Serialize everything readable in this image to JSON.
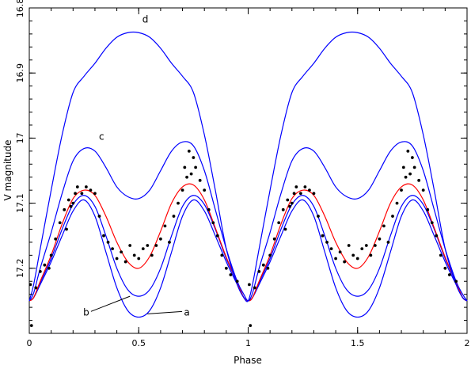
{
  "chart_data": {
    "type": "line",
    "xlabel": "Phase",
    "ylabel": "V magnitude",
    "xlim": [
      0,
      2
    ],
    "ylim": [
      17.3,
      16.8
    ],
    "y_inverted": true,
    "grid": false,
    "x_ticks": [
      0,
      0.5,
      1,
      1.5,
      2
    ],
    "x_tick_labels": [
      "0",
      "0.5",
      "1",
      "1.5",
      "2"
    ],
    "y_ticks": [
      16.8,
      16.9,
      17,
      17.1,
      17.2
    ],
    "y_tick_labels": [
      "16.8",
      "16.9",
      "17",
      "17.1",
      "17.2"
    ],
    "colors": {
      "model": "#0000ff",
      "fit": "#ff0000",
      "points": "#000000",
      "axis": "#000000"
    },
    "series": [
      {
        "label": "a",
        "color": "#0000ff",
        "x": [
          0.0,
          0.02,
          0.05,
          0.1,
          0.15,
          0.2,
          0.25,
          0.3,
          0.35,
          0.4,
          0.45,
          0.5,
          0.55,
          0.6,
          0.65,
          0.7,
          0.75,
          0.8,
          0.85,
          0.9,
          0.95,
          0.98,
          1.0
        ],
        "y": [
          17.25,
          17.245,
          17.225,
          17.19,
          17.15,
          17.112,
          17.095,
          17.12,
          17.175,
          17.23,
          17.265,
          17.275,
          17.265,
          17.23,
          17.175,
          17.12,
          17.095,
          17.112,
          17.15,
          17.19,
          17.225,
          17.245,
          17.25
        ]
      },
      {
        "label": "b",
        "color": "#0000ff",
        "x": [
          0.0,
          0.02,
          0.05,
          0.1,
          0.15,
          0.2,
          0.25,
          0.3,
          0.35,
          0.4,
          0.45,
          0.5,
          0.55,
          0.6,
          0.65,
          0.7,
          0.75,
          0.8,
          0.85,
          0.9,
          0.95,
          0.98,
          1.0
        ],
        "y": [
          17.25,
          17.245,
          17.222,
          17.185,
          17.14,
          17.102,
          17.088,
          17.105,
          17.15,
          17.2,
          17.233,
          17.243,
          17.233,
          17.2,
          17.15,
          17.105,
          17.088,
          17.102,
          17.14,
          17.185,
          17.222,
          17.245,
          17.25
        ]
      },
      {
        "label": "",
        "color": "#ff0000",
        "x": [
          0.0,
          0.02,
          0.05,
          0.1,
          0.15,
          0.2,
          0.25,
          0.3,
          0.35,
          0.4,
          0.45,
          0.5,
          0.55,
          0.6,
          0.65,
          0.7,
          0.75,
          0.8,
          0.85,
          0.9,
          0.95,
          0.98,
          1.0
        ],
        "y": [
          17.25,
          17.245,
          17.22,
          17.18,
          17.132,
          17.093,
          17.08,
          17.088,
          17.12,
          17.16,
          17.19,
          17.2,
          17.182,
          17.143,
          17.1,
          17.075,
          17.072,
          17.095,
          17.138,
          17.183,
          17.222,
          17.245,
          17.25
        ]
      },
      {
        "label": "c",
        "color": "#0000ff",
        "x": [
          0.0,
          0.02,
          0.05,
          0.1,
          0.15,
          0.2,
          0.25,
          0.3,
          0.35,
          0.4,
          0.45,
          0.5,
          0.55,
          0.6,
          0.65,
          0.7,
          0.75,
          0.8,
          0.85,
          0.9,
          0.95,
          0.98,
          1.0
        ],
        "y": [
          17.25,
          17.238,
          17.2,
          17.145,
          17.085,
          17.035,
          17.016,
          17.02,
          17.045,
          17.075,
          17.09,
          17.093,
          17.08,
          17.05,
          17.02,
          17.006,
          17.012,
          17.05,
          17.11,
          17.17,
          17.22,
          17.24,
          17.25
        ]
      },
      {
        "label": "d",
        "color": "#0000ff",
        "x": [
          0.0,
          0.02,
          0.05,
          0.1,
          0.15,
          0.2,
          0.25,
          0.3,
          0.35,
          0.4,
          0.45,
          0.5,
          0.55,
          0.6,
          0.65,
          0.7,
          0.75,
          0.8,
          0.85,
          0.9,
          0.95,
          0.98,
          1.0
        ],
        "y": [
          17.25,
          17.225,
          17.17,
          17.08,
          16.995,
          16.93,
          16.905,
          16.885,
          16.862,
          16.845,
          16.838,
          16.838,
          16.845,
          16.862,
          16.885,
          16.905,
          16.93,
          16.995,
          17.08,
          17.17,
          17.225,
          17.245,
          17.25
        ]
      }
    ],
    "period_repeat": 1,
    "points": {
      "x": [
        0.005,
        0.01,
        0.03,
        0.05,
        0.07,
        0.09,
        0.1,
        0.12,
        0.14,
        0.16,
        0.17,
        0.18,
        0.19,
        0.2,
        0.21,
        0.22,
        0.24,
        0.26,
        0.28,
        0.3,
        0.32,
        0.34,
        0.36,
        0.38,
        0.4,
        0.42,
        0.44,
        0.46,
        0.48,
        0.5,
        0.52,
        0.54,
        0.56,
        0.58,
        0.6,
        0.62,
        0.64,
        0.66,
        0.68,
        0.7,
        0.71,
        0.72,
        0.73,
        0.74,
        0.75,
        0.76,
        0.78,
        0.8,
        0.82,
        0.84,
        0.86,
        0.88,
        0.9,
        0.92,
        0.95
      ],
      "y": [
        17.225,
        17.288,
        17.23,
        17.205,
        17.195,
        17.2,
        17.18,
        17.155,
        17.13,
        17.11,
        17.14,
        17.095,
        17.105,
        17.1,
        17.085,
        17.075,
        17.085,
        17.075,
        17.08,
        17.085,
        17.12,
        17.15,
        17.16,
        17.17,
        17.185,
        17.175,
        17.19,
        17.165,
        17.18,
        17.185,
        17.17,
        17.165,
        17.18,
        17.165,
        17.155,
        17.135,
        17.16,
        17.12,
        17.1,
        17.08,
        17.045,
        17.06,
        17.02,
        17.055,
        17.03,
        17.045,
        17.065,
        17.08,
        17.11,
        17.13,
        17.15,
        17.18,
        17.2,
        17.21,
        17.22
      ]
    },
    "annotations": [
      {
        "text": "a",
        "x": 0.72,
        "y": 17.27,
        "line_to": [
          0.54,
          17.27
        ]
      },
      {
        "text": "b",
        "x": 0.26,
        "y": 17.27,
        "line_to": [
          0.46,
          17.243
        ]
      },
      {
        "text": "c",
        "x": 0.33,
        "y": 17.0
      },
      {
        "text": "d",
        "x": 0.53,
        "y": 16.82
      }
    ]
  }
}
